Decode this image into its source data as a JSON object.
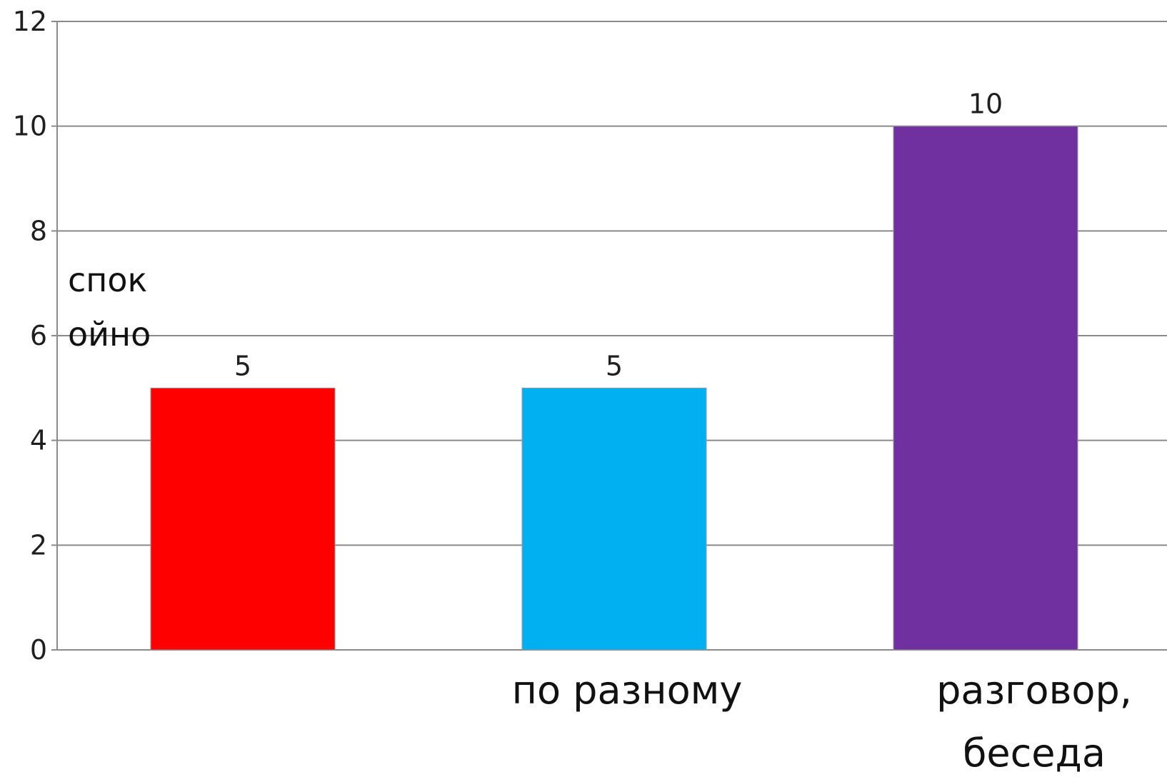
{
  "chart_data": {
    "type": "bar",
    "categories": [
      "спок ойно",
      "по разному",
      "разговор, беседа"
    ],
    "category_label_lines": [
      [
        "спок",
        "ойно"
      ],
      [
        "по разному"
      ],
      [
        "разговор,",
        "беседа"
      ]
    ],
    "values": [
      5,
      5,
      10
    ],
    "data_labels": [
      "5",
      "5",
      "10"
    ],
    "colors": [
      "#ff0000",
      "#00b0f0",
      "#7030a0"
    ],
    "ylim": [
      0,
      12
    ],
    "yticks": [
      0,
      2,
      4,
      6,
      8,
      10,
      12
    ],
    "title": "",
    "xlabel": "",
    "ylabel": "",
    "grid": true,
    "legend": false
  }
}
